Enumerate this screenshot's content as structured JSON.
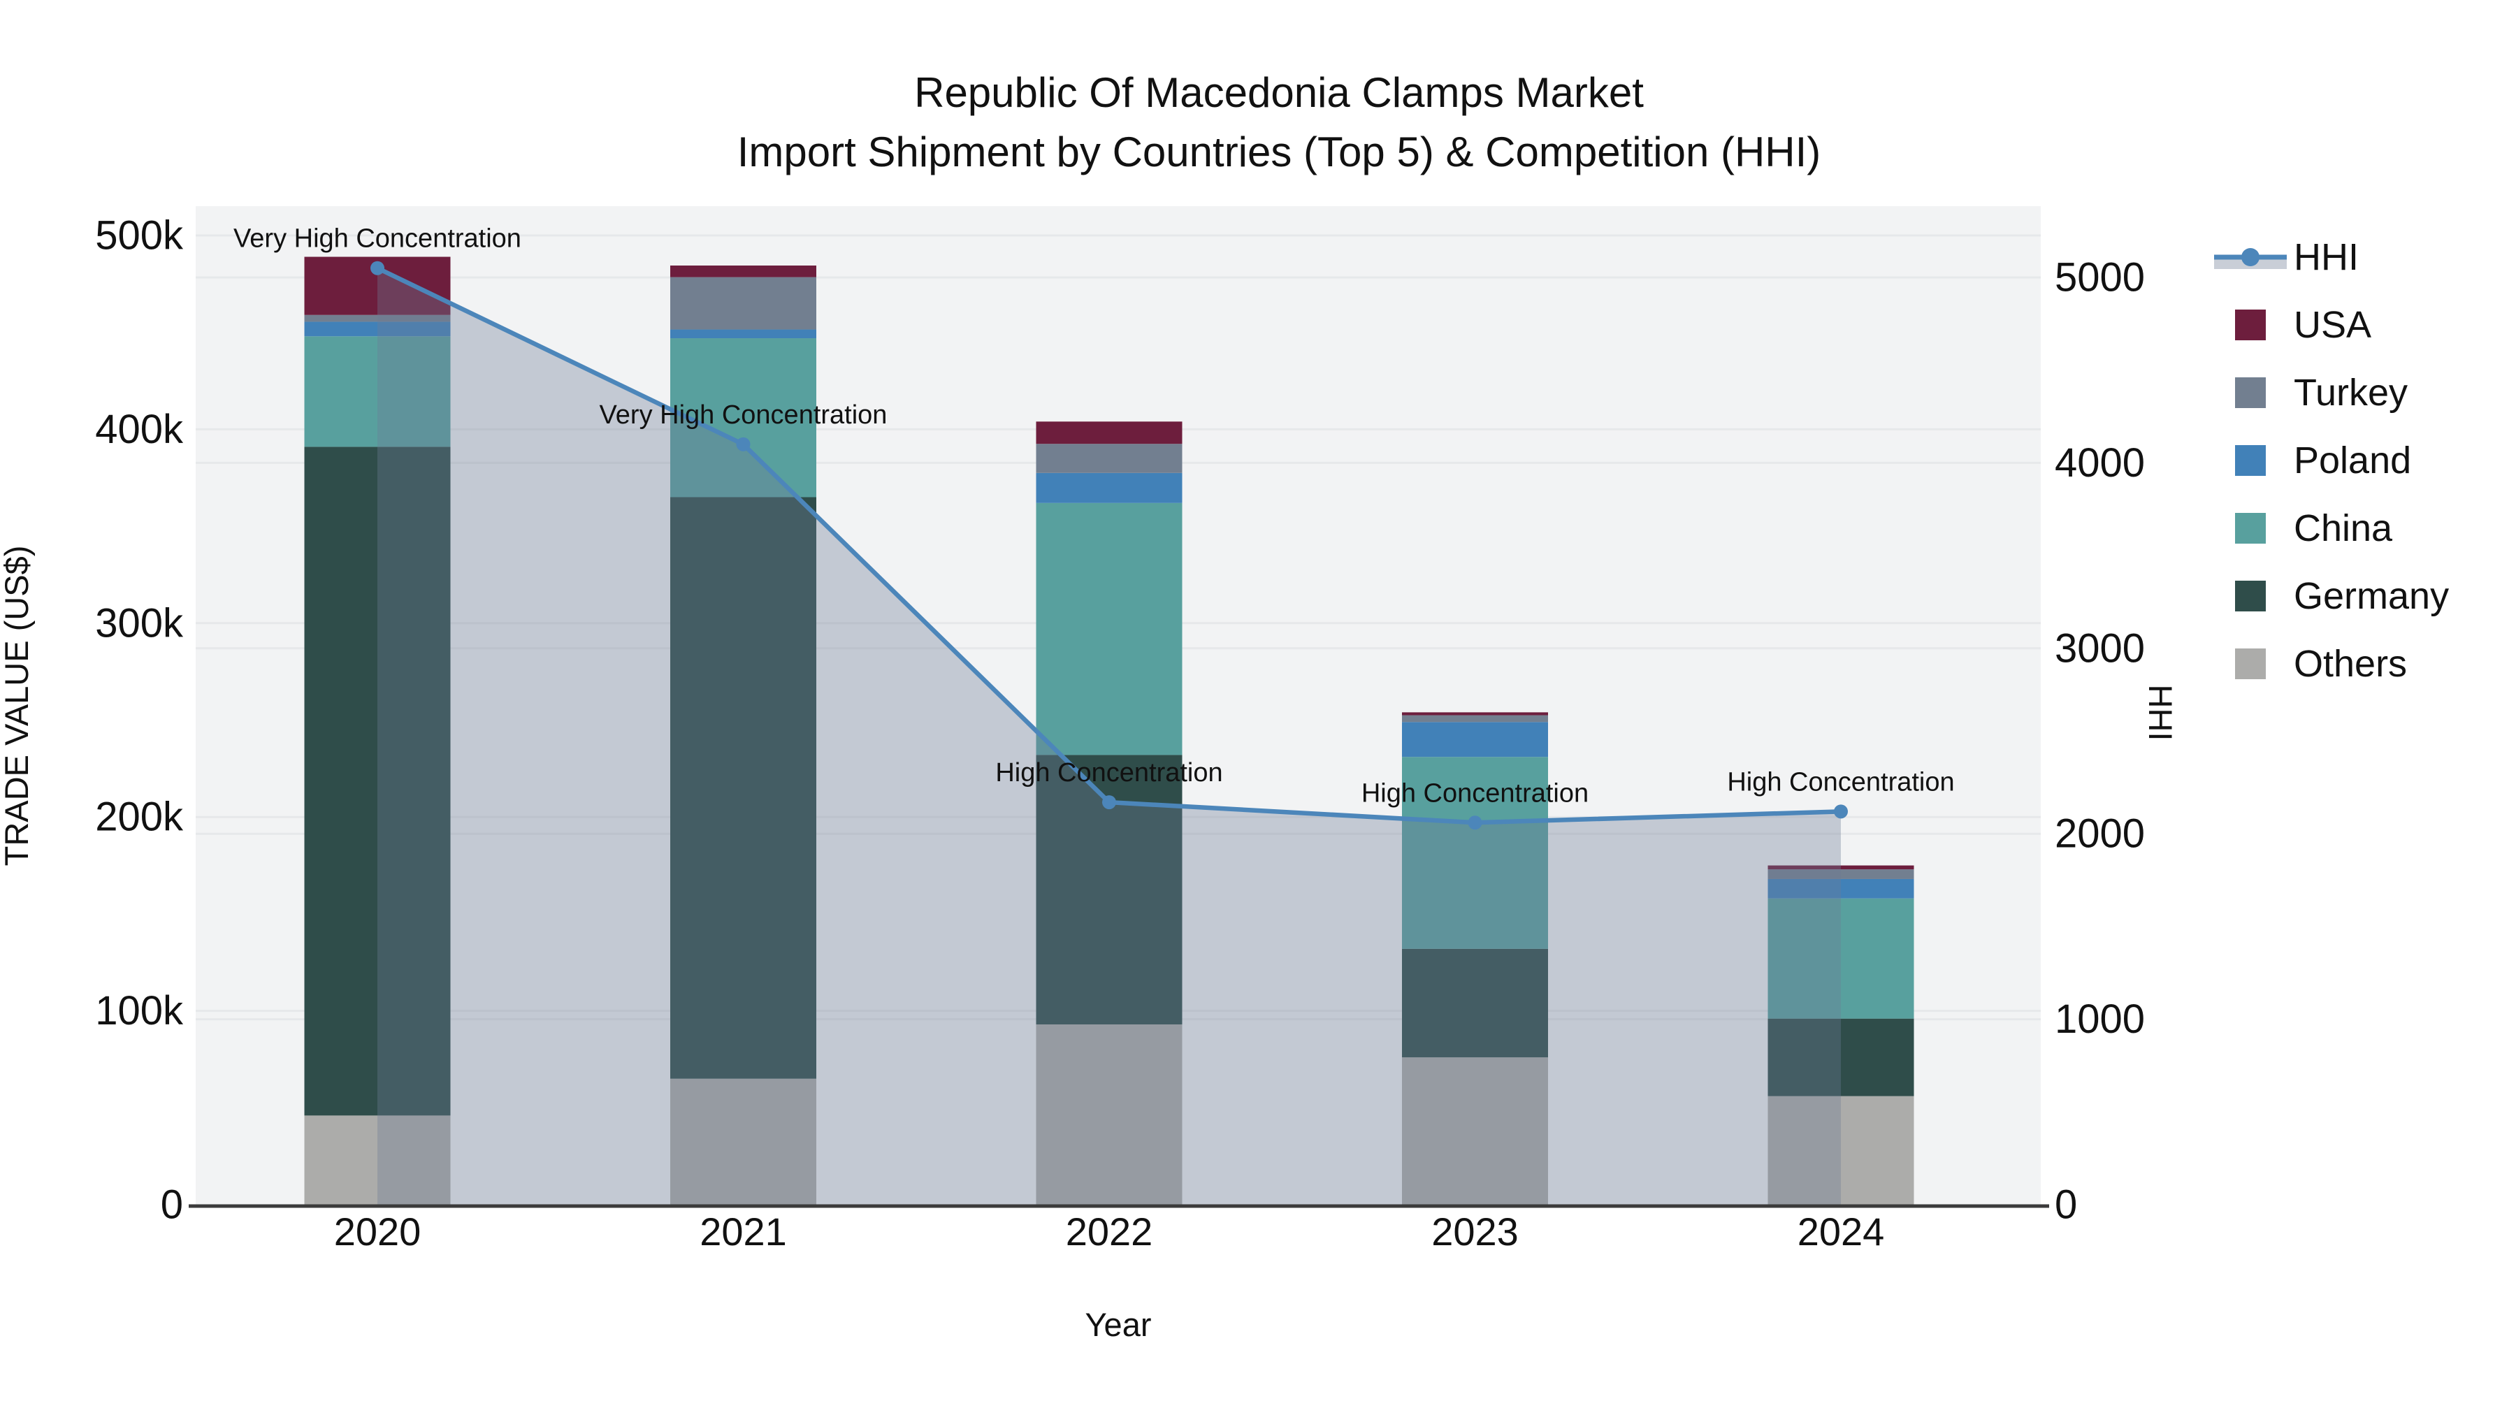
{
  "chart_data": {
    "type": "bar+line",
    "title": {
      "line1": "Republic Of Macedonia Clamps Market",
      "line2": "Import Shipment by Countries (Top 5) & Competition (HHI)"
    },
    "xlabel": "Year",
    "y_left_label": "TRADE VALUE (US$)",
    "y_right_label": "HHI",
    "categories": [
      "2020",
      "2021",
      "2022",
      "2023",
      "2024"
    ],
    "bar_series": [
      {
        "name": "Others",
        "color": "#acacaa",
        "values": [
          46000,
          65000,
          93000,
          76000,
          56000
        ]
      },
      {
        "name": "Germany",
        "color": "#2f4d4a",
        "values": [
          345000,
          300000,
          139000,
          56000,
          40000
        ]
      },
      {
        "name": "China",
        "color": "#58a09e",
        "values": [
          57000,
          82000,
          130000,
          99000,
          62000
        ]
      },
      {
        "name": "Poland",
        "color": "#4181b8",
        "values": [
          7500,
          4500,
          15500,
          18000,
          10000
        ]
      },
      {
        "name": "Turkey",
        "color": "#727f90",
        "values": [
          3500,
          27000,
          15000,
          3500,
          5000
        ]
      },
      {
        "name": "USA",
        "color": "#6d1e3d",
        "values": [
          30000,
          6000,
          11500,
          1500,
          2000
        ]
      }
    ],
    "hhi_series": {
      "name": "HHI",
      "line_color": "#4c86ba",
      "area_fill": "rgba(110,122,148,0.35)",
      "values": [
        5050,
        4100,
        2170,
        2060,
        2120
      ]
    },
    "annotations": [
      "Very High Concentration",
      "Very High Concentration",
      "High Concentration",
      "High Concentration",
      "High Concentration"
    ],
    "left_axis": {
      "max": 500000,
      "tick_labels": [
        "0",
        "100k",
        "200k",
        "300k",
        "400k",
        "500k"
      ]
    },
    "right_axis": {
      "max": 5000,
      "tick_labels": [
        "0",
        "1000",
        "2000",
        "3000",
        "4000",
        "5000"
      ]
    },
    "legend_order": [
      "HHI",
      "USA",
      "Turkey",
      "Poland",
      "China",
      "Germany",
      "Others"
    ]
  },
  "colors": {
    "figure_bg": "#ffffff",
    "plot_bg": "#f2f3f4",
    "grid": "#e6e8ea",
    "axis_line": "#3b3b3b",
    "text": "#111111",
    "legend_area_band": "#c9ced7"
  }
}
